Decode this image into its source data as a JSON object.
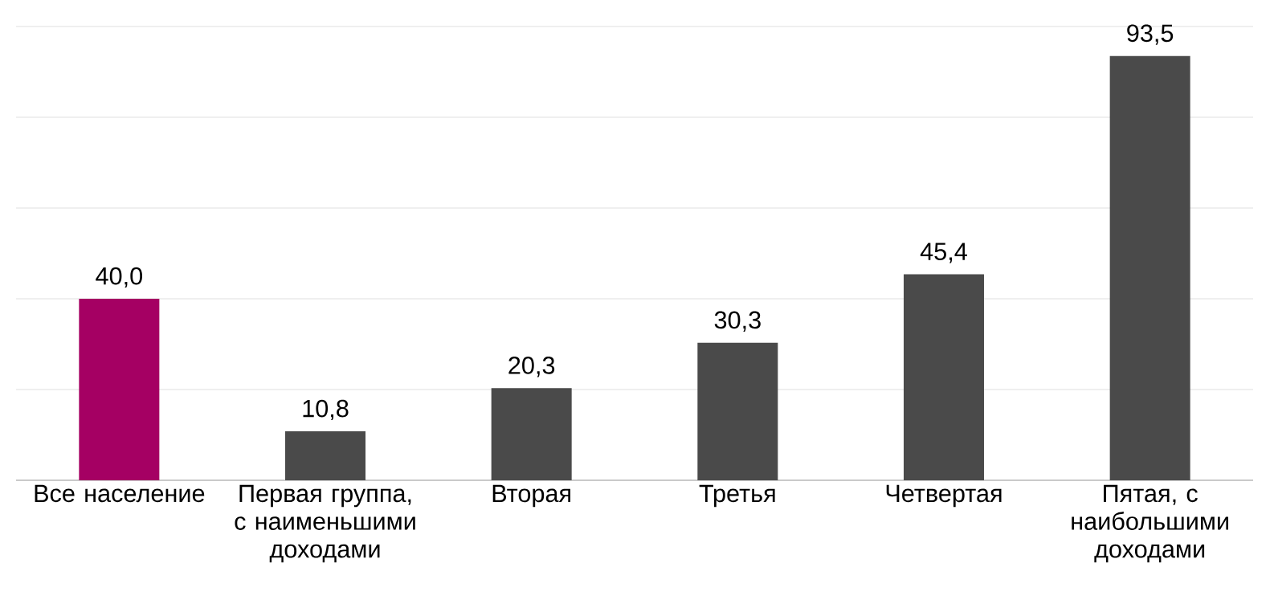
{
  "chart_data": {
    "type": "bar",
    "categories": [
      "Все население",
      "Первая группа, с наименьшими доходами",
      "Вторая",
      "Третья",
      "Четвертая",
      "Пятая, с наибольшими доходами"
    ],
    "values": [
      40.0,
      10.8,
      20.3,
      30.3,
      45.4,
      93.5
    ],
    "colors": [
      "#a50063",
      "#4a4a4a",
      "#4a4a4a",
      "#4a4a4a",
      "#4a4a4a",
      "#4a4a4a"
    ],
    "value_labels": [
      "40,0",
      "10,8",
      "20,3",
      "30,3",
      "45,4",
      "93,5"
    ],
    "tick_labels": "x",
    "grid": "y"
  }
}
